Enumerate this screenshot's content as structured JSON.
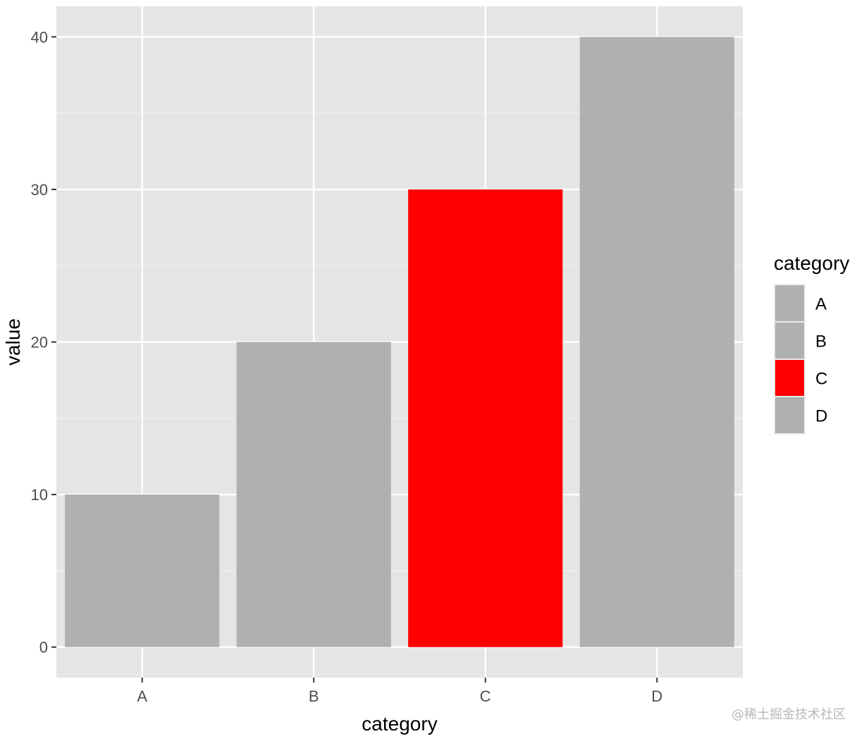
{
  "chart_data": {
    "type": "bar",
    "categories": [
      "A",
      "B",
      "C",
      "D"
    ],
    "values": [
      10,
      20,
      30,
      40
    ],
    "colors": [
      "#b0b0b0",
      "#b0b0b0",
      "#ff0000",
      "#b0b0b0"
    ],
    "xlabel": "category",
    "ylabel": "value",
    "ylim": [
      -2,
      42
    ],
    "yticks": [
      0,
      10,
      20,
      30,
      40
    ],
    "ytick_labels": [
      "0",
      "10",
      "20",
      "30",
      "40"
    ],
    "grid": true,
    "panel_background": "#e5e5e5",
    "legend": {
      "title": "category",
      "placement": "right",
      "entries": [
        "A",
        "B",
        "C",
        "D"
      ]
    }
  },
  "watermark": "@稀土掘金技术社区"
}
